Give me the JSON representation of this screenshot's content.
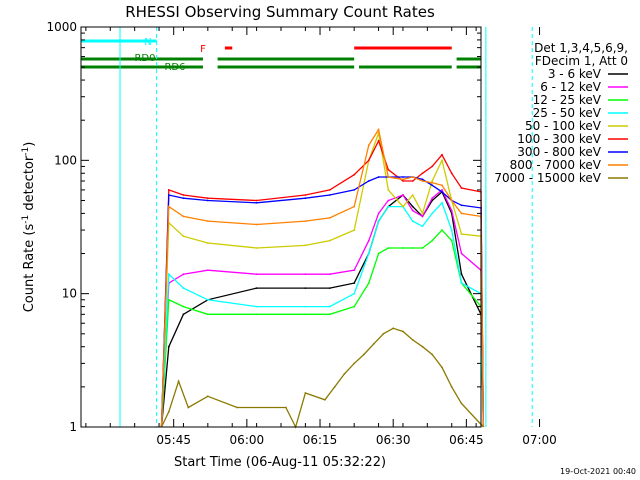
{
  "chart_data": {
    "type": "line",
    "title": "RHESSI Observing Summary Count Rates",
    "xlabel": "Start Time (06-Aug-11 05:32:22)",
    "ylabel_main": "Count Rate (s",
    "ylabel_exp": "-1",
    "ylabel_mid": " detector",
    "ylabel_end": ")",
    "y_scale": "log",
    "ylim": [
      1,
      1000
    ],
    "xlim_minutes": [
      -6,
      76
    ],
    "x_ticks": [
      {
        "t": 13,
        "label": "05:45"
      },
      {
        "t": 28,
        "label": "06:00"
      },
      {
        "t": 43,
        "label": "06:15"
      },
      {
        "t": 58,
        "label": "06:30"
      },
      {
        "t": 73,
        "label": "06:45"
      },
      {
        "t": 88,
        "label": "07:00"
      }
    ],
    "y_ticks": [
      {
        "v": 1,
        "label": "1"
      },
      {
        "v": 10,
        "label": "10"
      },
      {
        "v": 100,
        "label": "100"
      },
      {
        "v": 1000,
        "label": "1000"
      }
    ],
    "legend_title_1": "Det 1,3,4,5,6,9,",
    "legend_title_2": "FDecim 1, Att 0",
    "legend_placement": "right",
    "series": [
      {
        "name": "3 - 6 keV",
        "color": "#000000",
        "x": [
          12,
          15,
          20,
          30,
          40,
          45,
          50,
          53,
          55,
          57,
          60,
          62,
          64,
          66,
          68,
          70,
          72,
          76
        ],
        "y": [
          4,
          7,
          9,
          11,
          11,
          11,
          12,
          20,
          35,
          45,
          55,
          45,
          38,
          50,
          58,
          40,
          14,
          7
        ]
      },
      {
        "name": "6 - 12 keV",
        "color": "#ff00ff",
        "x": [
          12,
          15,
          20,
          30,
          40,
          45,
          50,
          53,
          55,
          57,
          60,
          62,
          64,
          66,
          68,
          70,
          72,
          76
        ],
        "y": [
          12,
          14,
          15,
          14,
          14,
          14,
          15,
          25,
          40,
          50,
          55,
          42,
          38,
          52,
          60,
          42,
          20,
          15
        ]
      },
      {
        "name": "12 - 25 keV",
        "color": "#00ff00",
        "x": [
          12,
          15,
          20,
          30,
          40,
          45,
          50,
          53,
          55,
          57,
          60,
          62,
          64,
          66,
          68,
          70,
          72,
          76
        ],
        "y": [
          9,
          8,
          7,
          7,
          7,
          7,
          8,
          12,
          20,
          22,
          22,
          22,
          22,
          25,
          30,
          25,
          12,
          8
        ]
      },
      {
        "name": "25 - 50 keV",
        "color": "#00ffff",
        "x": [
          12,
          15,
          20,
          30,
          40,
          45,
          50,
          53,
          55,
          57,
          60,
          62,
          64,
          66,
          68,
          70,
          72,
          76
        ],
        "y": [
          14,
          11,
          9,
          8,
          8,
          8,
          10,
          20,
          35,
          45,
          45,
          35,
          32,
          40,
          48,
          30,
          12,
          10
        ]
      },
      {
        "name": "50 - 100 keV",
        "color": "#cccc00",
        "x": [
          12,
          15,
          20,
          30,
          40,
          45,
          50,
          53,
          55,
          57,
          60,
          62,
          64,
          66,
          68,
          70,
          72,
          76
        ],
        "y": [
          34,
          27,
          24,
          22,
          23,
          25,
          30,
          100,
          160,
          60,
          45,
          55,
          40,
          70,
          100,
          50,
          28,
          27
        ]
      },
      {
        "name": "100 - 300 keV",
        "color": "#ff0000",
        "x": [
          12,
          15,
          20,
          30,
          40,
          45,
          50,
          53,
          55,
          57,
          60,
          62,
          64,
          66,
          68,
          70,
          72,
          76
        ],
        "y": [
          60,
          55,
          52,
          50,
          55,
          60,
          78,
          100,
          140,
          85,
          70,
          70,
          80,
          90,
          110,
          80,
          62,
          58
        ]
      },
      {
        "name": "300 - 800 keV",
        "color": "#0000ff",
        "x": [
          12,
          15,
          20,
          30,
          40,
          45,
          50,
          53,
          55,
          57,
          60,
          62,
          64,
          66,
          68,
          70,
          72,
          76
        ],
        "y": [
          55,
          52,
          50,
          48,
          52,
          55,
          60,
          70,
          75,
          75,
          75,
          75,
          72,
          65,
          58,
          50,
          46,
          44
        ]
      },
      {
        "name": "800 - 7000 keV",
        "color": "#ff8000",
        "x": [
          12,
          15,
          20,
          30,
          40,
          45,
          50,
          53,
          55,
          57,
          60,
          62,
          64,
          66,
          68,
          70,
          72,
          76
        ],
        "y": [
          45,
          38,
          35,
          33,
          35,
          37,
          45,
          130,
          170,
          75,
          72,
          75,
          70,
          68,
          65,
          50,
          40,
          38
        ]
      },
      {
        "name": "7000 - 15000 keV",
        "color": "#8b7a00",
        "x": [
          12,
          14,
          16,
          20,
          26,
          36,
          38,
          40,
          44,
          46,
          48,
          50,
          52,
          54,
          56,
          58,
          60,
          62,
          64,
          66,
          68,
          70,
          72
        ],
        "y": [
          1.3,
          2.2,
          1.4,
          1.7,
          1.4,
          1.4,
          1,
          1.8,
          1.6,
          2,
          2.5,
          3,
          3.5,
          4.2,
          5,
          5.5,
          5.2,
          4.5,
          4,
          3.5,
          2.8,
          2,
          1.5
        ]
      }
    ],
    "flags": [
      {
        "label": "N",
        "color": "#00ffff",
        "segments": [
          [
            -6,
            9.5
          ],
          [
            77,
            88
          ]
        ]
      },
      {
        "label": "F",
        "color": "#ff0000",
        "segments": [
          [
            23.5,
            25
          ],
          [
            50,
            70
          ]
        ]
      },
      {
        "label": "RD0",
        "color": "#008000",
        "segments": [
          [
            -6,
            19
          ],
          [
            22,
            50
          ],
          [
            71,
            88
          ]
        ]
      },
      {
        "label": "RD6",
        "color": "#008000",
        "segments": [
          [
            -6,
            19
          ],
          [
            22,
            50
          ],
          [
            51,
            70
          ],
          [
            71,
            86
          ],
          [
            87,
            88
          ]
        ]
      }
    ],
    "vlines": [
      {
        "t": 2,
        "color": "#00ffff",
        "style": "solid"
      },
      {
        "t": 9.5,
        "color": "#00ffff",
        "style": "dashed"
      },
      {
        "t": 77,
        "color": "#00ffff",
        "style": "solid"
      },
      {
        "t": 86.5,
        "color": "#00ffff",
        "style": "dashed"
      }
    ]
  },
  "footer": {
    "timestamp": "19-Oct-2021 00:40"
  }
}
